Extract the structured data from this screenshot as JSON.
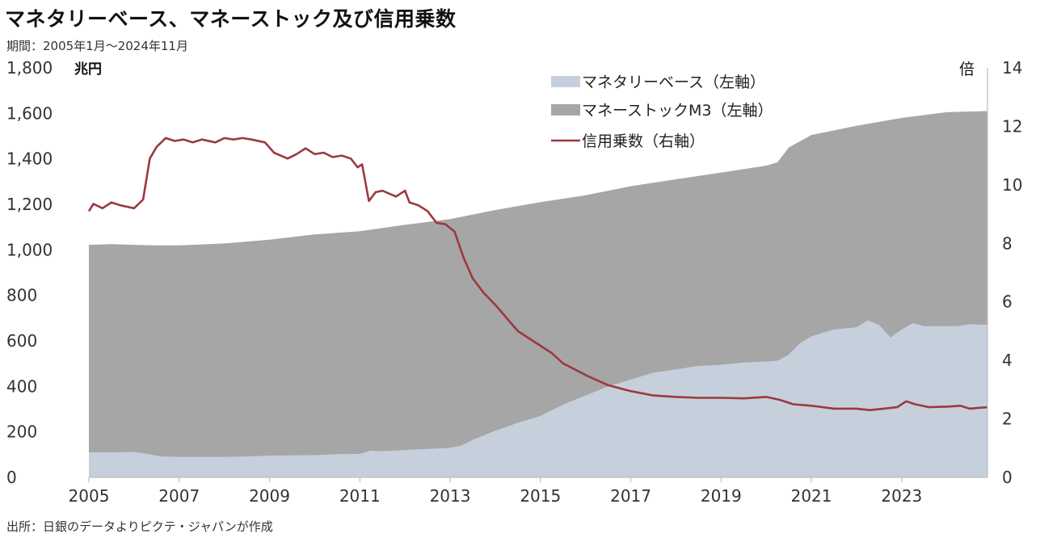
{
  "title": "マネタリーベース、マネーストック及び信用乗数",
  "subtitle": "期間：2005年1月～2024年11月",
  "source": "出所：日銀のデータよりピクテ・ジャパンが作成",
  "colors": {
    "monetary_base": "#c6cfdc",
    "money_stock": "#a6a6a6",
    "multiplier": "#9b3a3f",
    "axis": "#bfbfbf"
  },
  "chart_data": {
    "type": "area",
    "x_unit": "year",
    "xlim": [
      2005.0,
      2024.9
    ],
    "x_ticks": [
      "2005",
      "2007",
      "2009",
      "2011",
      "2013",
      "2015",
      "2017",
      "2019",
      "2021",
      "2023"
    ],
    "left_axis": {
      "unit_label": "兆円",
      "ylim": [
        0,
        1800
      ],
      "ticks": [
        "0",
        "200",
        "400",
        "600",
        "800",
        "1,000",
        "1,200",
        "1,400",
        "1,600",
        "1,800"
      ]
    },
    "right_axis": {
      "unit_label": "倍",
      "ylim": [
        0,
        14
      ],
      "ticks": [
        "0",
        "2",
        "4",
        "6",
        "8",
        "10",
        "12",
        "14"
      ]
    },
    "legend": {
      "position": "top-center"
    },
    "series": [
      {
        "name": "マネタリーベース（左軸）",
        "axis": "left",
        "kind": "area",
        "x": [
          2005.0,
          2005.5,
          2006.0,
          2006.3,
          2006.6,
          2007.0,
          2008.0,
          2008.5,
          2009.0,
          2010.0,
          2010.5,
          2011.0,
          2011.25,
          2011.5,
          2012.0,
          2012.5,
          2013.0,
          2013.25,
          2013.5,
          2014.0,
          2014.5,
          2015.0,
          2015.5,
          2016.0,
          2016.5,
          2017.0,
          2017.5,
          2018.0,
          2018.5,
          2019.0,
          2019.5,
          2020.0,
          2020.25,
          2020.5,
          2020.75,
          2021.0,
          2021.5,
          2022.0,
          2022.25,
          2022.5,
          2022.75,
          2023.0,
          2023.25,
          2023.5,
          2024.0,
          2024.25,
          2024.5,
          2024.9
        ],
        "values": [
          110,
          110,
          112,
          103,
          92,
          90,
          90,
          92,
          96,
          98,
          102,
          103,
          118,
          115,
          120,
          125,
          130,
          140,
          165,
          205,
          240,
          270,
          320,
          360,
          400,
          430,
          460,
          475,
          490,
          495,
          505,
          510,
          513,
          540,
          590,
          620,
          650,
          660,
          690,
          670,
          615,
          650,
          678,
          665,
          665,
          665,
          673,
          670
        ]
      },
      {
        "name": "マネーストックM3（左軸）",
        "axis": "left",
        "kind": "area",
        "x": [
          2005.0,
          2005.5,
          2006.0,
          2006.5,
          2007.0,
          2008.0,
          2009.0,
          2010.0,
          2011.0,
          2012.0,
          2013.0,
          2014.0,
          2015.0,
          2016.0,
          2017.0,
          2018.0,
          2019.0,
          2020.0,
          2020.25,
          2020.5,
          2021.0,
          2022.0,
          2023.0,
          2024.0,
          2024.9
        ],
        "values": [
          1022,
          1025,
          1022,
          1020,
          1020,
          1028,
          1045,
          1068,
          1082,
          1110,
          1135,
          1175,
          1210,
          1240,
          1280,
          1310,
          1340,
          1370,
          1385,
          1450,
          1505,
          1545,
          1580,
          1605,
          1610
        ]
      },
      {
        "name": "信用乗数（右軸）",
        "axis": "right",
        "kind": "line",
        "x": [
          2005.0,
          2005.1,
          2005.3,
          2005.5,
          2005.7,
          2006.0,
          2006.2,
          2006.35,
          2006.5,
          2006.7,
          2006.9,
          2007.1,
          2007.3,
          2007.5,
          2007.8,
          2008.0,
          2008.2,
          2008.4,
          2008.6,
          2008.9,
          2009.1,
          2009.4,
          2009.6,
          2009.8,
          2010.0,
          2010.2,
          2010.4,
          2010.6,
          2010.8,
          2010.95,
          2011.05,
          2011.2,
          2011.35,
          2011.5,
          2011.8,
          2012.0,
          2012.1,
          2012.2,
          2012.3,
          2012.5,
          2012.7,
          2012.9,
          2013.1,
          2013.3,
          2013.5,
          2013.75,
          2014.0,
          2014.25,
          2014.5,
          2014.75,
          2015.0,
          2015.25,
          2015.5,
          2015.75,
          2016.0,
          2016.5,
          2017.0,
          2017.5,
          2018.0,
          2018.5,
          2019.0,
          2019.5,
          2020.0,
          2020.3,
          2020.6,
          2021.0,
          2021.5,
          2022.0,
          2022.3,
          2022.6,
          2022.9,
          2023.1,
          2023.3,
          2023.6,
          2024.0,
          2024.3,
          2024.5,
          2024.9
        ],
        "values": [
          9.1,
          9.35,
          9.2,
          9.4,
          9.3,
          9.2,
          9.5,
          10.9,
          11.3,
          11.6,
          11.5,
          11.55,
          11.45,
          11.55,
          11.45,
          11.6,
          11.55,
          11.6,
          11.55,
          11.45,
          11.1,
          10.9,
          11.05,
          11.25,
          11.05,
          11.1,
          10.95,
          11.0,
          10.9,
          10.6,
          10.7,
          9.45,
          9.75,
          9.8,
          9.6,
          9.8,
          9.4,
          9.35,
          9.3,
          9.1,
          8.7,
          8.65,
          8.4,
          7.5,
          6.8,
          6.3,
          5.9,
          5.45,
          5.0,
          4.75,
          4.5,
          4.25,
          3.9,
          3.7,
          3.5,
          3.15,
          2.95,
          2.8,
          2.75,
          2.72,
          2.72,
          2.7,
          2.75,
          2.65,
          2.5,
          2.45,
          2.35,
          2.35,
          2.3,
          2.35,
          2.4,
          2.6,
          2.5,
          2.4,
          2.42,
          2.45,
          2.35,
          2.4
        ]
      }
    ]
  }
}
